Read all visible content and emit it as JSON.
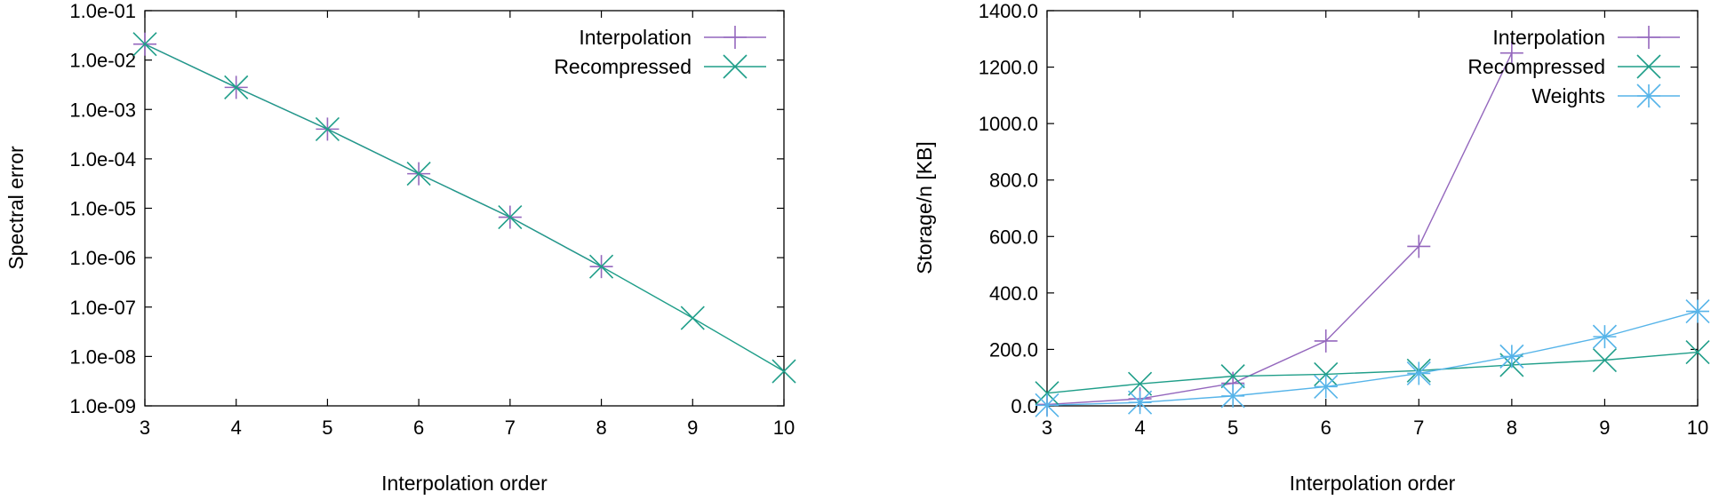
{
  "chart_data": [
    {
      "type": "line",
      "title": "",
      "xlabel": "Interpolation order",
      "ylabel": "Spectral error",
      "yscale": "log",
      "xlim": [
        3,
        10
      ],
      "ylim": [
        1e-09,
        0.1
      ],
      "x_tick_labels": [
        "3",
        "4",
        "5",
        "6",
        "7",
        "8",
        "9",
        "10"
      ],
      "y_tick_labels": [
        "1.0e-09",
        "1.0e-08",
        "1.0e-07",
        "1.0e-06",
        "1.0e-05",
        "1.0e-04",
        "1.0e-03",
        "1.0e-02",
        "1.0e-01"
      ],
      "grid": false,
      "legend_position": "top-right",
      "x": [
        3,
        4,
        5,
        6,
        7,
        8,
        9,
        10
      ],
      "series": [
        {
          "name": "Interpolation",
          "color": "#9467bd",
          "marker": "plus",
          "values": [
            0.021,
            0.0028,
            0.0004,
            5e-05,
            6.6e-06,
            6.6e-07,
            null,
            null
          ]
        },
        {
          "name": "Recompressed",
          "color": "#1f9e89",
          "marker": "cross",
          "values": [
            0.021,
            0.0028,
            0.0004,
            5e-05,
            6.6e-06,
            6.6e-07,
            6e-08,
            5e-09
          ]
        }
      ]
    },
    {
      "type": "line",
      "title": "",
      "xlabel": "Interpolation order",
      "ylabel": "Storage/n [KB]",
      "yscale": "linear",
      "xlim": [
        3,
        10
      ],
      "ylim": [
        0,
        1400
      ],
      "x_tick_labels": [
        "3",
        "4",
        "5",
        "6",
        "7",
        "8",
        "9",
        "10"
      ],
      "y_tick_labels": [
        "0.0",
        "200.0",
        "400.0",
        "600.0",
        "800.0",
        "1000.0",
        "1200.0",
        "1400.0"
      ],
      "grid": false,
      "legend_position": "top-right",
      "x": [
        3,
        4,
        5,
        6,
        7,
        8,
        9,
        10
      ],
      "series": [
        {
          "name": "Interpolation",
          "color": "#9467bd",
          "marker": "plus",
          "values": [
            5,
            25,
            80,
            230,
            565,
            1250,
            null,
            null
          ]
        },
        {
          "name": "Recompressed",
          "color": "#1f9e89",
          "marker": "cross",
          "values": [
            45,
            78,
            105,
            112,
            125,
            145,
            162,
            190
          ]
        },
        {
          "name": "Weights",
          "color": "#56b4e9",
          "marker": "asterisk",
          "values": [
            2,
            12,
            35,
            68,
            115,
            175,
            245,
            335
          ]
        }
      ]
    }
  ]
}
